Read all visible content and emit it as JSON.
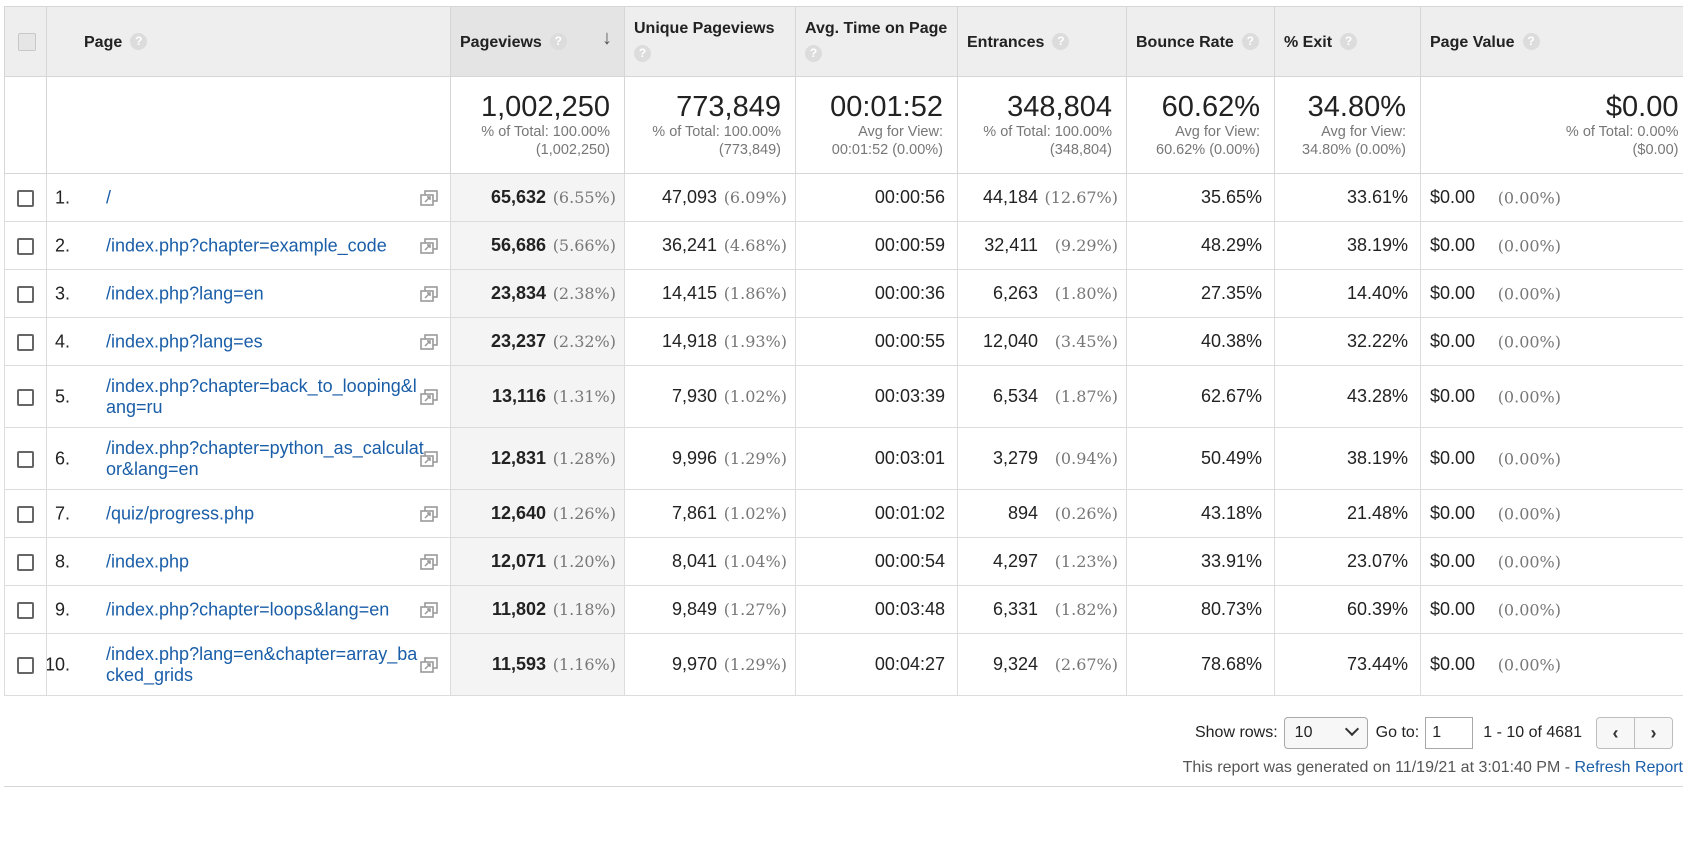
{
  "headers": {
    "page": "Page",
    "pageviews": "Pageviews",
    "unique_pageviews": "Unique Pageviews",
    "avg_time": "Avg. Time on Page",
    "entrances": "Entrances",
    "bounce_rate": "Bounce Rate",
    "exit": "% Exit",
    "page_value": "Page Value",
    "help_glyph": "?",
    "sort_glyph": "↓"
  },
  "summary": {
    "pageviews": {
      "big": "1,002,250",
      "l1": "% of Total: 100.00%",
      "l2": "(1,002,250)"
    },
    "unique_pageviews": {
      "big": "773,849",
      "l1": "% of Total: 100.00%",
      "l2": "(773,849)"
    },
    "avg_time": {
      "big": "00:01:52",
      "l1": "Avg for View:",
      "l2": "00:01:52 (0.00%)"
    },
    "entrances": {
      "big": "348,804",
      "l1": "% of Total: 100.00%",
      "l2": "(348,804)"
    },
    "bounce_rate": {
      "big": "60.62%",
      "l1": "Avg for View:",
      "l2": "60.62% (0.00%)"
    },
    "exit": {
      "big": "34.80%",
      "l1": "Avg for View:",
      "l2": "34.80% (0.00%)"
    },
    "page_value": {
      "big": "$0.00",
      "l1": "% of Total: 0.00%",
      "l2": "($0.00)"
    }
  },
  "rows": [
    {
      "num": "1.",
      "page": "/",
      "pv": "65,632",
      "pv_pct": "(6.55%)",
      "upv": "47,093",
      "upv_pct": "(6.09%)",
      "time": "00:00:56",
      "ent": "44,184",
      "ent_pct": "(12.67%)",
      "bounce": "35.65%",
      "exit": "33.61%",
      "value": "$0.00",
      "value_pct": "(0.00%)"
    },
    {
      "num": "2.",
      "page": "/index.php?chapter=example_code",
      "pv": "56,686",
      "pv_pct": "(5.66%)",
      "upv": "36,241",
      "upv_pct": "(4.68%)",
      "time": "00:00:59",
      "ent": "32,411",
      "ent_pct": "(9.29%)",
      "bounce": "48.29%",
      "exit": "38.19%",
      "value": "$0.00",
      "value_pct": "(0.00%)"
    },
    {
      "num": "3.",
      "page": "/index.php?lang=en",
      "pv": "23,834",
      "pv_pct": "(2.38%)",
      "upv": "14,415",
      "upv_pct": "(1.86%)",
      "time": "00:00:36",
      "ent": "6,263",
      "ent_pct": "(1.80%)",
      "bounce": "27.35%",
      "exit": "14.40%",
      "value": "$0.00",
      "value_pct": "(0.00%)"
    },
    {
      "num": "4.",
      "page": "/index.php?lang=es",
      "pv": "23,237",
      "pv_pct": "(2.32%)",
      "upv": "14,918",
      "upv_pct": "(1.93%)",
      "time": "00:00:55",
      "ent": "12,040",
      "ent_pct": "(3.45%)",
      "bounce": "40.38%",
      "exit": "32.22%",
      "value": "$0.00",
      "value_pct": "(0.00%)"
    },
    {
      "num": "5.",
      "page": "/index.php?chapter=back_to_looping&lang=ru",
      "pv": "13,116",
      "pv_pct": "(1.31%)",
      "upv": "7,930",
      "upv_pct": "(1.02%)",
      "time": "00:03:39",
      "ent": "6,534",
      "ent_pct": "(1.87%)",
      "bounce": "62.67%",
      "exit": "43.28%",
      "value": "$0.00",
      "value_pct": "(0.00%)"
    },
    {
      "num": "6.",
      "page": "/index.php?chapter=python_as_calculator&lang=en",
      "pv": "12,831",
      "pv_pct": "(1.28%)",
      "upv": "9,996",
      "upv_pct": "(1.29%)",
      "time": "00:03:01",
      "ent": "3,279",
      "ent_pct": "(0.94%)",
      "bounce": "50.49%",
      "exit": "38.19%",
      "value": "$0.00",
      "value_pct": "(0.00%)"
    },
    {
      "num": "7.",
      "page": "/quiz/progress.php",
      "pv": "12,640",
      "pv_pct": "(1.26%)",
      "upv": "7,861",
      "upv_pct": "(1.02%)",
      "time": "00:01:02",
      "ent": "894",
      "ent_pct": "(0.26%)",
      "bounce": "43.18%",
      "exit": "21.48%",
      "value": "$0.00",
      "value_pct": "(0.00%)"
    },
    {
      "num": "8.",
      "page": "/index.php",
      "pv": "12,071",
      "pv_pct": "(1.20%)",
      "upv": "8,041",
      "upv_pct": "(1.04%)",
      "time": "00:00:54",
      "ent": "4,297",
      "ent_pct": "(1.23%)",
      "bounce": "33.91%",
      "exit": "23.07%",
      "value": "$0.00",
      "value_pct": "(0.00%)"
    },
    {
      "num": "9.",
      "page": "/index.php?chapter=loops&lang=en",
      "pv": "11,802",
      "pv_pct": "(1.18%)",
      "upv": "9,849",
      "upv_pct": "(1.27%)",
      "time": "00:03:48",
      "ent": "6,331",
      "ent_pct": "(1.82%)",
      "bounce": "80.73%",
      "exit": "60.39%",
      "value": "$0.00",
      "value_pct": "(0.00%)"
    },
    {
      "num": "10.",
      "page": "/index.php?lang=en&chapter=array_backed_grids",
      "pv": "11,593",
      "pv_pct": "(1.16%)",
      "upv": "9,970",
      "upv_pct": "(1.29%)",
      "time": "00:04:27",
      "ent": "9,324",
      "ent_pct": "(2.67%)",
      "bounce": "78.68%",
      "exit": "73.44%",
      "value": "$0.00",
      "value_pct": "(0.00%)"
    }
  ],
  "footer": {
    "show_rows_label": "Show rows:",
    "show_rows_value": "10",
    "goto_label": "Go to:",
    "goto_value": "1",
    "range_text": "1 - 10 of 4681",
    "prev_glyph": "‹",
    "next_glyph": "›",
    "generated_text": "This report was generated on 11/19/21 at 3:01:40 PM - ",
    "refresh_label": "Refresh Report"
  },
  "colors": {
    "link": "#1a5ea8",
    "header_bg": "#eeeeee",
    "muted": "#777777"
  },
  "icons": {
    "popout": "open-in-new-window-icon",
    "help": "question-circle-icon",
    "sort": "arrow-down-icon"
  }
}
